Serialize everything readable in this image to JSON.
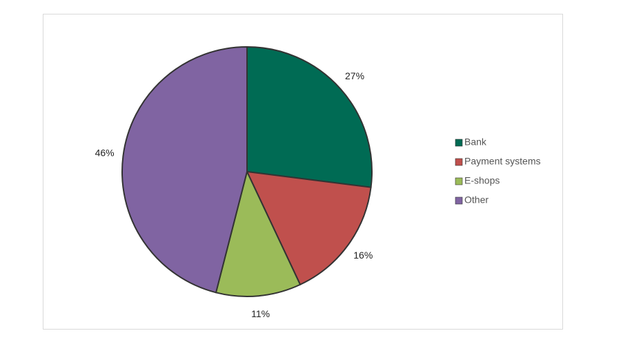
{
  "chart_data": {
    "type": "pie",
    "categories": [
      "Bank",
      "Payment systems",
      "E-shops",
      "Other"
    ],
    "values": [
      27,
      16,
      11,
      46
    ],
    "value_labels": [
      "27%",
      "16%",
      "11%",
      "46%"
    ],
    "colors": [
      "#006b54",
      "#c0504d",
      "#9bbb59",
      "#8064a2"
    ],
    "legend": "right"
  }
}
